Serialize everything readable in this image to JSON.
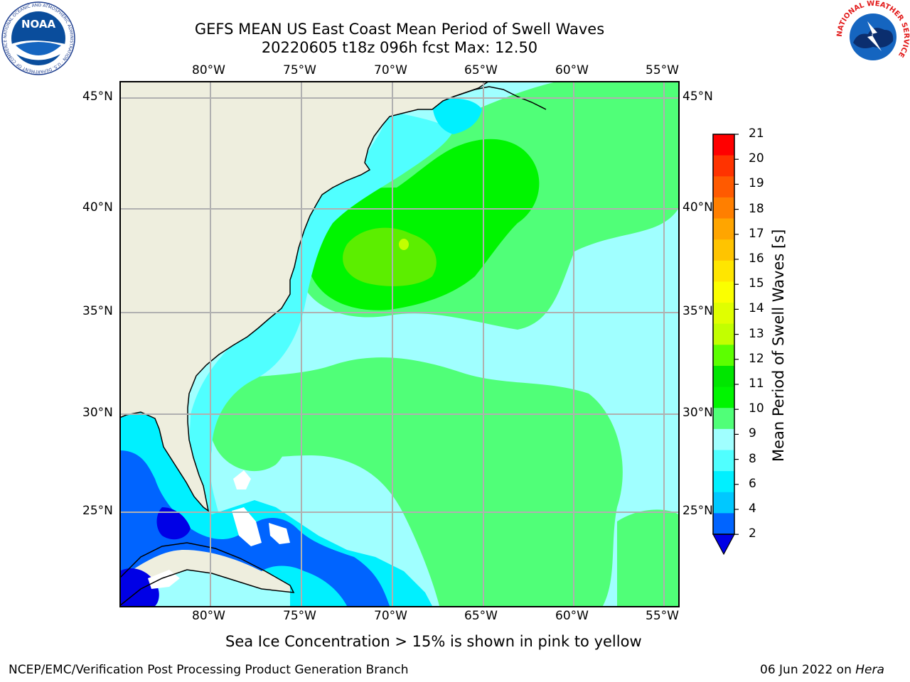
{
  "title": {
    "line1": "GEFS MEAN US East Coast Mean Period of Swell Waves",
    "line2": "20220605 t18z 096h fcst   Max: 12.50"
  },
  "axes": {
    "lon_labels": [
      "80°W",
      "75°W",
      "70°W",
      "65°W",
      "60°W",
      "55°W"
    ],
    "lat_labels": [
      "45°N",
      "40°N",
      "35°N",
      "30°N",
      "25°N"
    ]
  },
  "colorbar": {
    "label": "Mean Period of Swell Waves [s]",
    "ticks": [
      "21",
      "20",
      "19",
      "18",
      "17",
      "16",
      "15",
      "14",
      "13",
      "12",
      "11",
      "10",
      "9",
      "8",
      "6",
      "4",
      "2"
    ],
    "colors": [
      "#ff0000",
      "#ff3300",
      "#ff5a00",
      "#ff7f00",
      "#ffa500",
      "#ffc400",
      "#ffe600",
      "#fbff00",
      "#e0ff00",
      "#c2ff00",
      "#5cff00",
      "#00e600",
      "#00f500",
      "#50ff78",
      "#a0ffff",
      "#50ffff",
      "#00f0ff",
      "#00c8ff",
      "#0064ff"
    ],
    "under_color": "#0000e6"
  },
  "map_colors": {
    "land": "#eeeede",
    "ocean_base": "#a0ffff",
    "period_9_10": "#50ff78",
    "period_10_11": "#00f500",
    "period_11_12": "#5cee00",
    "period_12_13": "#c2ff00",
    "period_8_9": "#50ffff",
    "period_6_8": "#00f0ff",
    "period_4_6": "#0064ff",
    "period_below_2": "#0000e6",
    "grid": "#b0b0b0"
  },
  "caption": "Sea Ice Concentration > 15% is shown in pink to yellow",
  "footer": {
    "left": "NCEP/EMC/Verification Post Processing Product Generation Branch",
    "right_date": "06 Jun 2022 on",
    "right_machine": "Hera"
  },
  "logos": {
    "noaa": "NOAA",
    "noaa_ring": "NATIONAL OCEANIC AND ATMOSPHERIC ADMINISTRATION · U.S. DEPARTMENT OF COMMERCE",
    "nws_ring": "NATIONAL WEATHER SERVICE"
  }
}
